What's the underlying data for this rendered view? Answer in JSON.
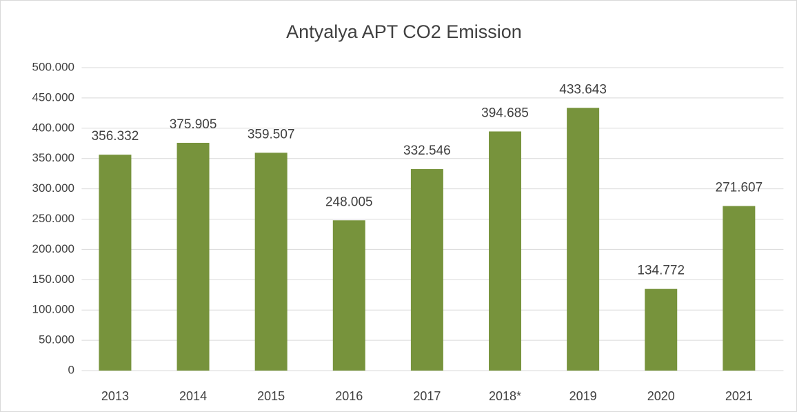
{
  "chart_data": {
    "type": "bar",
    "title": "Antyalya APT CO2 Emission",
    "categories": [
      "2013",
      "2014",
      "2015",
      "2016",
      "2017",
      "2018*",
      "2019",
      "2020",
      "2021"
    ],
    "values": [
      356332,
      375905,
      359507,
      248005,
      332546,
      394685,
      433643,
      134772,
      271607
    ],
    "value_labels": [
      "356.332",
      "375.905",
      "359.507",
      "248.005",
      "332.546",
      "394.685",
      "433.643",
      "134.772",
      "271.607"
    ],
    "color": "#77933c",
    "ylim": [
      0,
      500000
    ],
    "yticks": [
      0,
      {
        "value": 50000,
        "label": "50.000"
      },
      {
        "value": 100000,
        "label": "100.000"
      },
      {
        "value": 150000,
        "label": "150.000"
      },
      {
        "value": 200000,
        "label": "200.000"
      },
      {
        "value": 250000,
        "label": "250.000"
      },
      {
        "value": 300000,
        "label": "300.000"
      },
      {
        "value": 350000,
        "label": "350.000"
      },
      {
        "value": 400000,
        "label": "400.000"
      },
      {
        "value": 450000,
        "label": "450.000"
      },
      {
        "value": 500000,
        "label": "500.000"
      }
    ],
    "grid": true
  }
}
